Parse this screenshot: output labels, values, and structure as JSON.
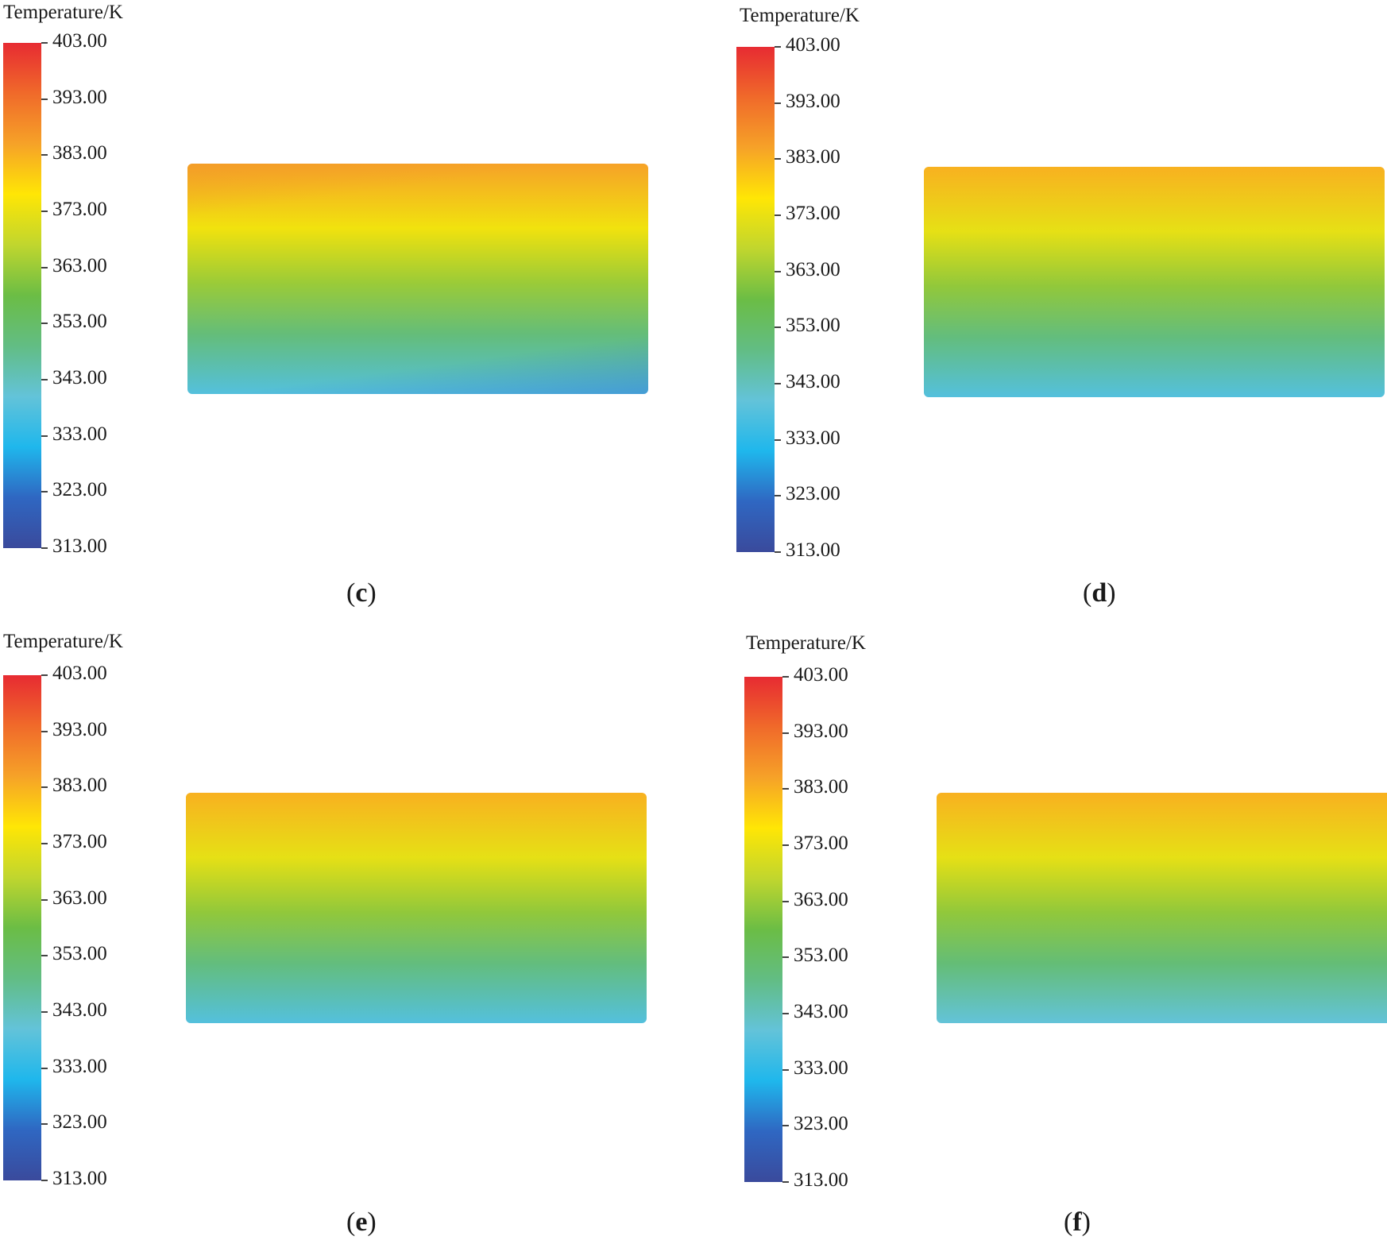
{
  "chart_data": [
    {
      "type": "heatmap",
      "panel_label": "c",
      "legend_title": "Temperature/K",
      "colorbar": {
        "range": [
          313.0,
          403.0
        ],
        "ticks": [
          "403.00",
          "393.00",
          "383.00",
          "373.00",
          "363.00",
          "353.00",
          "343.00",
          "333.00",
          "323.00",
          "313.00"
        ],
        "colors": [
          "#3a4a9c",
          "#2f67c2",
          "#1fb7ec",
          "#63c3d9",
          "#62bd84",
          "#6bbd45",
          "#c0d62e",
          "#ffe605",
          "#f6a228",
          "#f06a2a",
          "#e72b32"
        ]
      },
      "field_temperature_K": {
        "top": 385,
        "middle": 363,
        "bottom": 338
      }
    },
    {
      "type": "heatmap",
      "panel_label": "d",
      "legend_title": "Temperature/K",
      "colorbar": {
        "range": [
          313.0,
          403.0
        ],
        "ticks": [
          "403.00",
          "393.00",
          "383.00",
          "373.00",
          "363.00",
          "353.00",
          "343.00",
          "333.00",
          "323.00",
          "313.00"
        ],
        "colors": [
          "#3a4a9c",
          "#2f67c2",
          "#1fb7ec",
          "#63c3d9",
          "#62bd84",
          "#6bbd45",
          "#c0d62e",
          "#ffe605",
          "#f6a228",
          "#f06a2a",
          "#e72b32"
        ]
      },
      "field_temperature_K": {
        "top": 383,
        "middle": 362,
        "bottom": 338
      }
    },
    {
      "type": "heatmap",
      "panel_label": "e",
      "legend_title": "Temperature/K",
      "colorbar": {
        "range": [
          313.0,
          403.0
        ],
        "ticks": [
          "403.00",
          "393.00",
          "383.00",
          "373.00",
          "363.00",
          "353.00",
          "343.00",
          "333.00",
          "323.00",
          "313.00"
        ],
        "colors": [
          "#3a4a9c",
          "#2f67c2",
          "#1fb7ec",
          "#63c3d9",
          "#62bd84",
          "#6bbd45",
          "#c0d62e",
          "#ffe605",
          "#f6a228",
          "#f06a2a",
          "#e72b32"
        ]
      },
      "field_temperature_K": {
        "top": 383,
        "middle": 362,
        "bottom": 338
      }
    },
    {
      "type": "heatmap",
      "panel_label": "f",
      "legend_title": "Temperature/K",
      "colorbar": {
        "range": [
          313.0,
          403.0
        ],
        "ticks": [
          "403.00",
          "393.00",
          "383.00",
          "373.00",
          "363.00",
          "353.00",
          "343.00",
          "333.00",
          "323.00",
          "313.00"
        ],
        "colors": [
          "#3a4a9c",
          "#2f67c2",
          "#1fb7ec",
          "#63c3d9",
          "#62bd84",
          "#6bbd45",
          "#c0d62e",
          "#ffe605",
          "#f6a228",
          "#f06a2a",
          "#e72b32"
        ]
      },
      "field_temperature_K": {
        "top": 383,
        "middle": 362,
        "bottom": 340
      }
    }
  ]
}
